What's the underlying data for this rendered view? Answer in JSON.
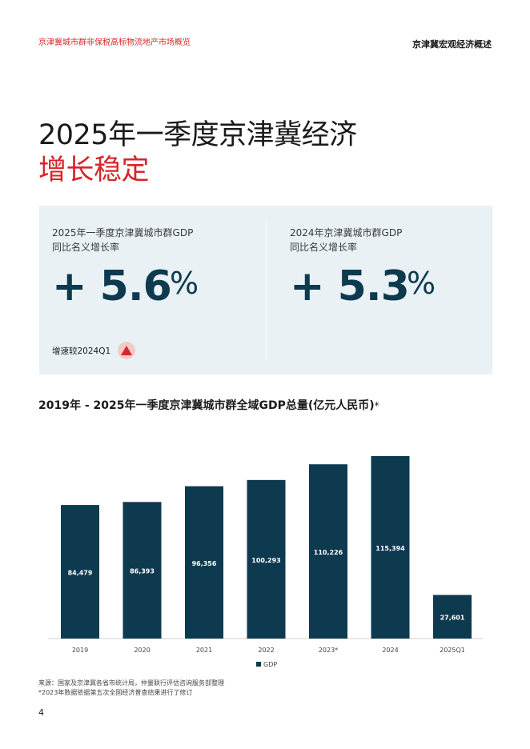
{
  "header": {
    "left": "京津冀城市群非保税高标物流地产市场概览",
    "right": "京津冀宏观经济概述"
  },
  "title": {
    "line1": "2025年一季度京津冀经济",
    "line2": "增长稳定"
  },
  "stats": [
    {
      "label_line1": "2025年一季度京津冀城市群GDP",
      "label_line2": "同比名义增长率",
      "value": "+ 5.6",
      "unit": "%"
    },
    {
      "label_line1": "2024年京津冀城市群GDP",
      "label_line2": "同比名义增长率",
      "value": "+ 5.3",
      "unit": "%"
    }
  ],
  "comparison": {
    "label": "增速较2024Q1",
    "icon": "up-triangle-icon",
    "color": "#d6262b"
  },
  "chart_title": {
    "main": "2019年 - 2025年一季度京津冀城市群全域GDP总量(亿元人民币)",
    "mark": "*"
  },
  "chart_data": {
    "type": "bar",
    "categories": [
      "2019",
      "2020",
      "2021",
      "2022",
      "2023*",
      "2024",
      "2025Q1"
    ],
    "series": [
      {
        "name": "GDP",
        "values": [
          84479,
          86393,
          96356,
          100293,
          110226,
          115394,
          27601
        ]
      }
    ],
    "value_labels": [
      "84,479",
      "86,393",
      "96,356",
      "100,293",
      "110,226",
      "115,394",
      "27,601"
    ],
    "ylim": [
      0,
      120000
    ],
    "grid": false,
    "legend": "bottom-center",
    "color": "#0e3a4f"
  },
  "source": {
    "line1": "来源：国家及京津冀各省市统计局，仲量联行评估咨询服务部整理",
    "line2": "*2023年数据依据第五次全国经济普查结果进行了修订"
  },
  "page_number": "4"
}
